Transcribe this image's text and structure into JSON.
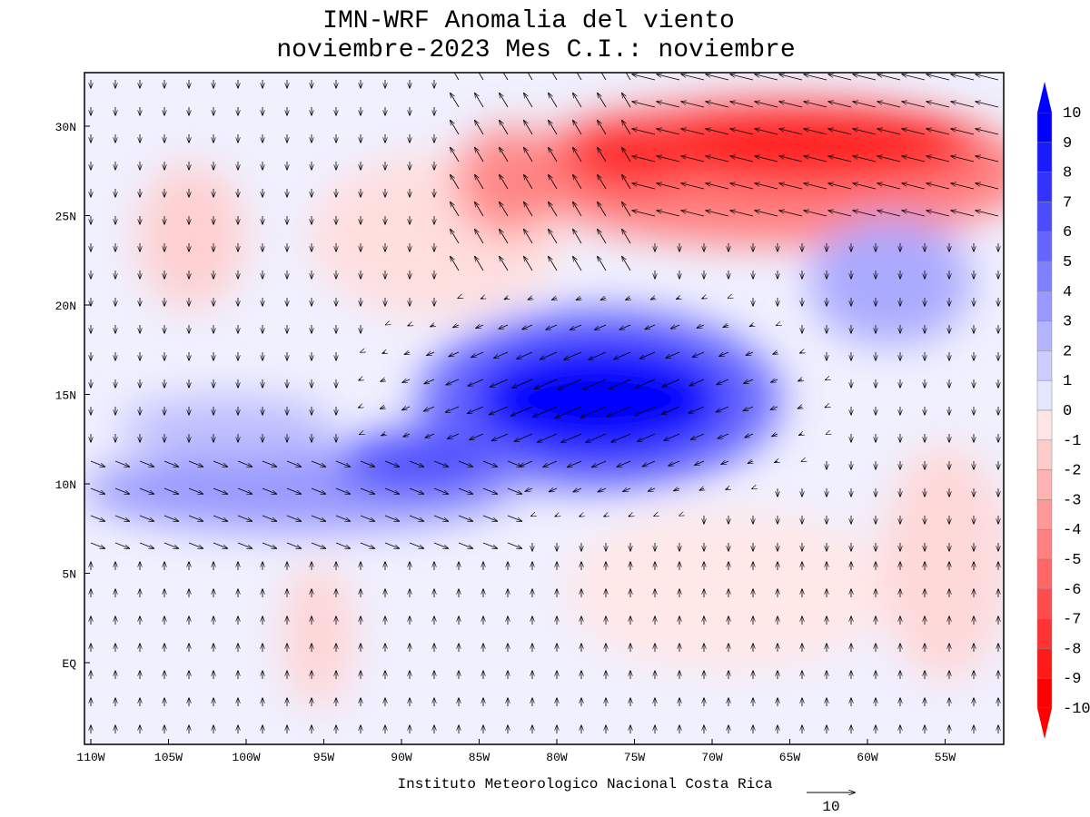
{
  "title": [
    "IMN-WRF Anomalia del viento",
    "noviembre-2023 Mes C.I.: noviembre"
  ],
  "map": {
    "xticks": [
      {
        "value": -110,
        "label": "110W"
      },
      {
        "value": -105,
        "label": "105W"
      },
      {
        "value": -100,
        "label": "100W"
      },
      {
        "value": -95,
        "label": "95W"
      },
      {
        "value": -90,
        "label": "90W"
      },
      {
        "value": -85,
        "label": "85W"
      },
      {
        "value": -80,
        "label": "80W"
      },
      {
        "value": -75,
        "label": "75W"
      },
      {
        "value": -70,
        "label": "70W"
      },
      {
        "value": -65,
        "label": "65W"
      },
      {
        "value": -60,
        "label": "60W"
      },
      {
        "value": -55,
        "label": "55W"
      }
    ],
    "yticks": [
      {
        "value": 30,
        "label": "30N"
      },
      {
        "value": 25,
        "label": "25N"
      },
      {
        "value": 20,
        "label": "20N"
      },
      {
        "value": 15,
        "label": "15N"
      },
      {
        "value": 10,
        "label": "10N"
      },
      {
        "value": 5,
        "label": "5N"
      },
      {
        "value": 0,
        "label": "EQ"
      }
    ]
  },
  "colorbar": {
    "levels": [
      10,
      9,
      8,
      7,
      6,
      5,
      4,
      3,
      2,
      1,
      0,
      -1,
      -2,
      -3,
      -4,
      -5,
      -6,
      -7,
      -8,
      -9,
      -10
    ],
    "colors": [
      "#0000ff",
      "#1a1aff",
      "#3333ff",
      "#4d4dff",
      "#6666ff",
      "#8080ff",
      "#9999ff",
      "#b3b3ff",
      "#ccccff",
      "#e6e6ff",
      "#ffe6e6",
      "#ffcccc",
      "#ffb3b3",
      "#ff9999",
      "#ff8080",
      "#ff6666",
      "#ff4d4d",
      "#ff3333",
      "#ff1a1a",
      "#ff0000"
    ]
  },
  "credit": "Instituto Meteorologico Nacional Costa Rica",
  "vector_ref": 10
}
